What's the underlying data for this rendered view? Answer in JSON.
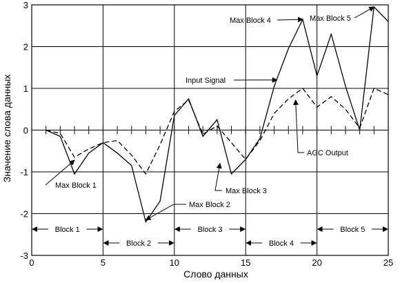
{
  "chart_data": {
    "type": "line",
    "xlabel": "Слово данных",
    "ylabel": "Значение слова данных",
    "xlim": [
      0,
      25
    ],
    "ylim": [
      -3,
      3
    ],
    "xticks": [
      0,
      5,
      10,
      15,
      20,
      25
    ],
    "yticks": [
      -3,
      -2,
      -1,
      0,
      1,
      2,
      3
    ],
    "grid": true,
    "series": [
      {
        "name": "Input Signal",
        "style": "solid",
        "x": [
          1,
          2,
          3,
          4,
          5,
          6,
          7,
          8,
          9,
          10,
          11,
          12,
          13,
          14,
          15,
          16,
          17,
          18,
          19,
          20,
          21,
          22,
          23,
          24,
          25
        ],
        "y": [
          0,
          -0.15,
          -1.05,
          -0.55,
          -0.3,
          -0.55,
          -0.85,
          -2.2,
          -1.7,
          0.35,
          0.75,
          -0.15,
          0.25,
          -1.05,
          -0.7,
          -0.2,
          1.05,
          1.95,
          2.65,
          1.3,
          2.3,
          1.05,
          0,
          2.95,
          2.6
        ]
      },
      {
        "name": "AGC Output",
        "style": "dashed",
        "x": [
          1,
          2,
          3,
          4,
          5,
          6,
          7,
          8,
          9,
          10,
          11,
          12,
          13,
          14,
          15,
          16,
          17,
          18,
          19,
          20,
          21,
          22,
          23,
          24,
          25
        ],
        "y": [
          0,
          -0.08,
          -0.65,
          -0.45,
          -0.3,
          -0.25,
          -0.6,
          -1.05,
          -0.35,
          0.45,
          0.72,
          -0.1,
          0.1,
          -0.3,
          -0.7,
          -0.25,
          0.4,
          0.75,
          1.0,
          0.55,
          0.8,
          0.5,
          0.05,
          1.0,
          0.85
        ]
      }
    ],
    "annotations": [
      {
        "text": "Max Block 1",
        "point": [
          3,
          -0.72
        ]
      },
      {
        "text": "Max Block 2",
        "point": [
          8,
          -2.15
        ]
      },
      {
        "text": "Max Block 3",
        "point": [
          13.2,
          -0.8
        ]
      },
      {
        "text": "Max Block 4",
        "point": [
          19,
          2.65
        ]
      },
      {
        "text": "Max Block 5",
        "point": [
          24,
          2.95
        ]
      },
      {
        "text": "Input Signal",
        "point": [
          17.2,
          1.2
        ]
      },
      {
        "text": "AGC Output",
        "point": [
          18.5,
          0.72
        ]
      }
    ],
    "blocks": [
      {
        "label": "Block 1",
        "start": 0,
        "end": 5,
        "row": 1
      },
      {
        "label": "Block 2",
        "start": 5,
        "end": 10,
        "row": 2
      },
      {
        "label": "Block 3",
        "start": 10,
        "end": 15,
        "row": 1
      },
      {
        "label": "Block 4",
        "start": 15,
        "end": 20,
        "row": 2
      },
      {
        "label": "Block 5",
        "start": 20,
        "end": 25,
        "row": 1
      }
    ]
  }
}
